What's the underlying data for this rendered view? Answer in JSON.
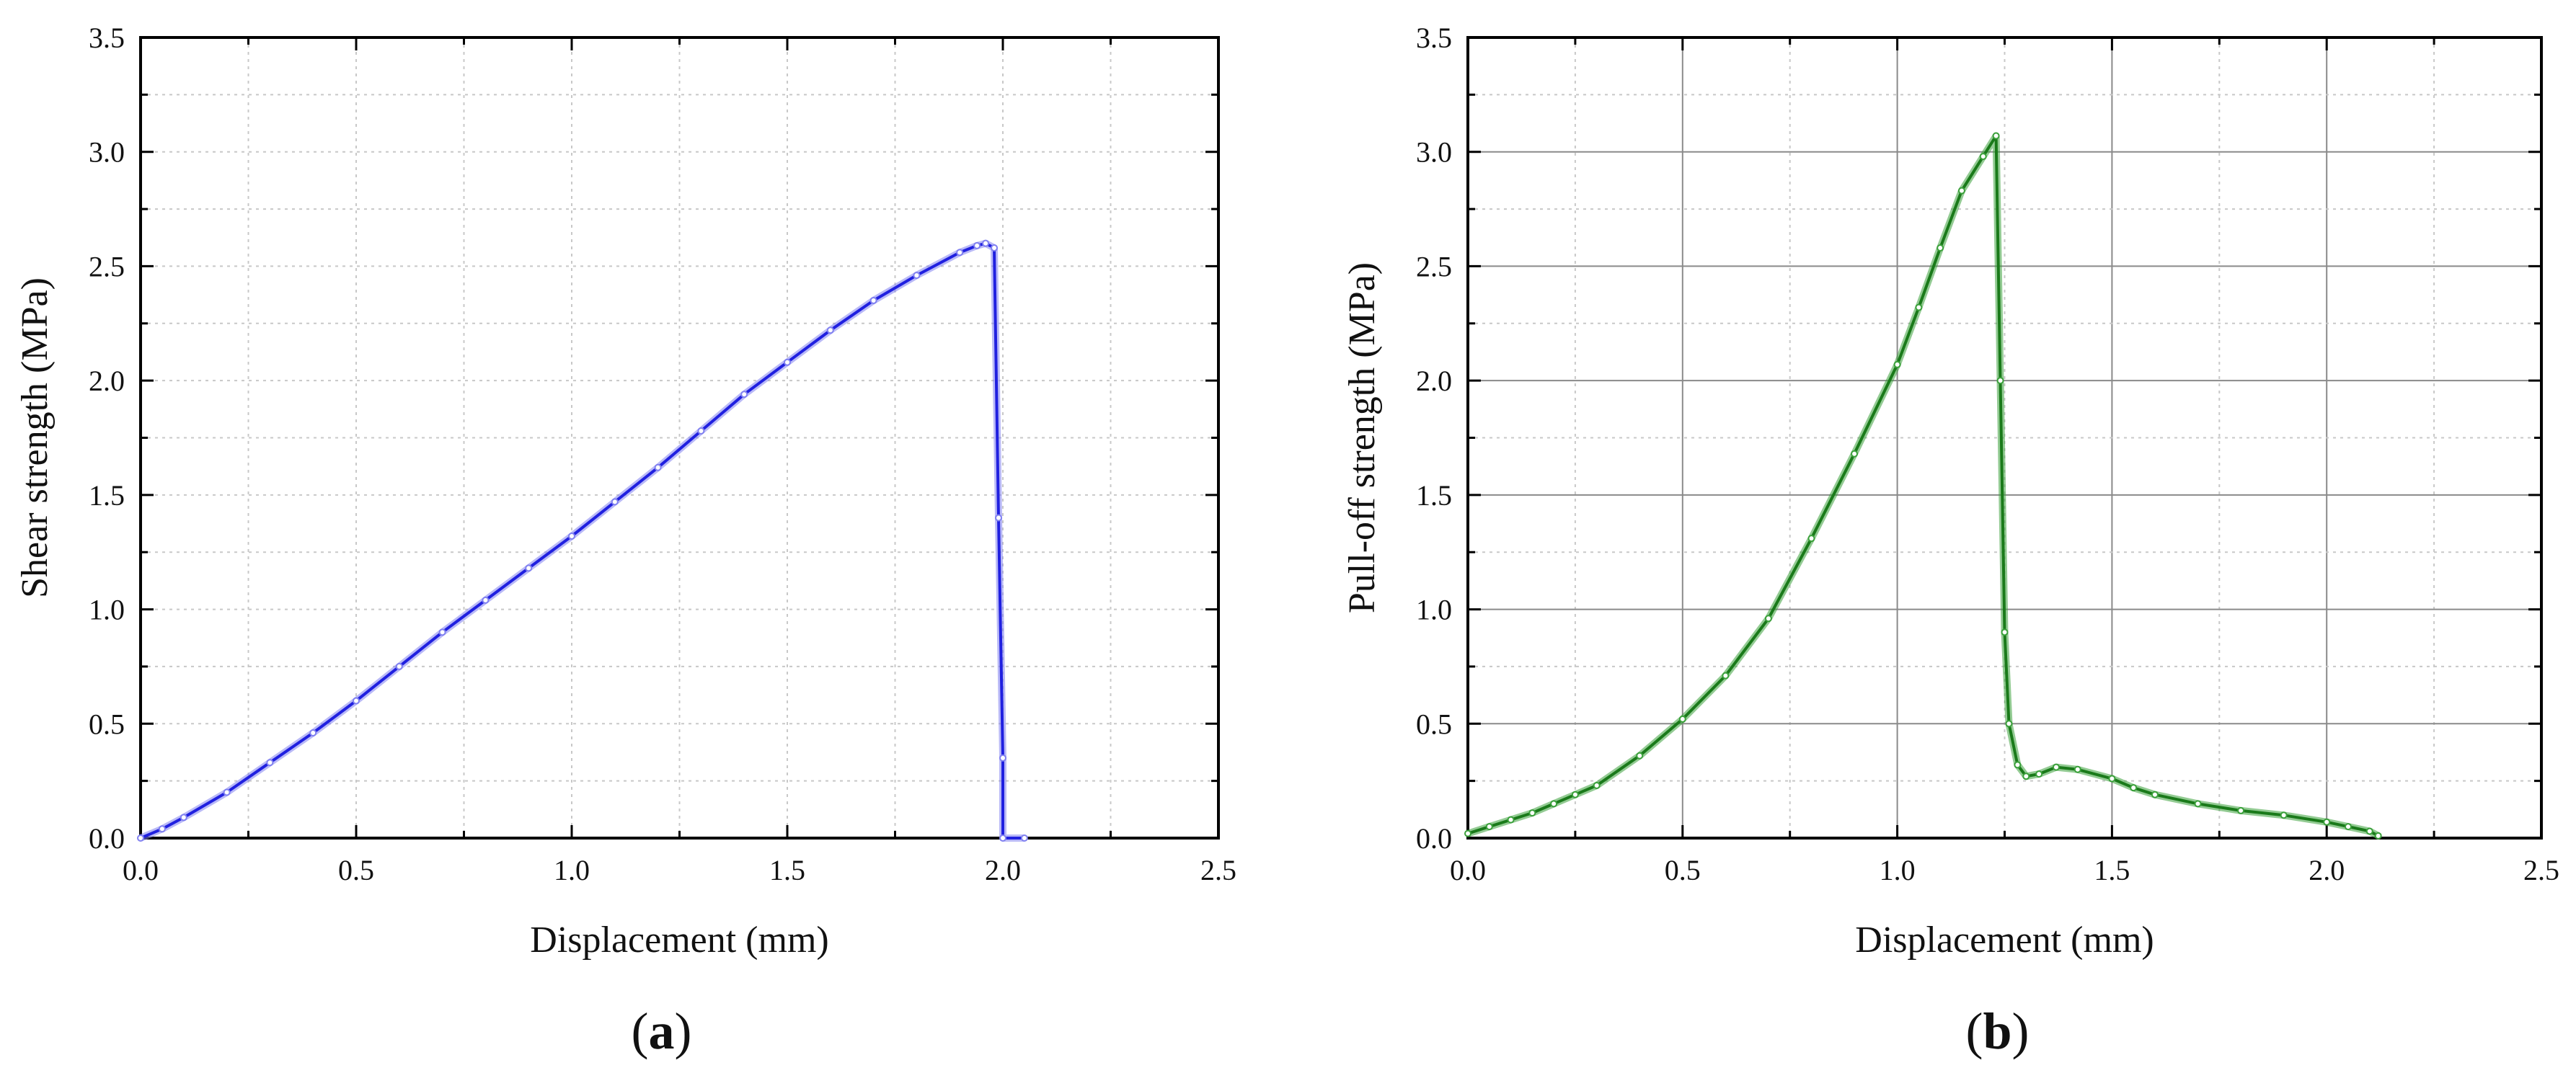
{
  "chart_data": [
    {
      "type": "line",
      "panel_label": {
        "open": "(",
        "letter": "a",
        "close": ")"
      },
      "xlabel": "Displacement (mm)",
      "ylabel": "Shear strength (MPa)",
      "xlim": [
        0.0,
        2.5
      ],
      "ylim": [
        0.0,
        3.5
      ],
      "xticks": [
        "0.0",
        "0.5",
        "1.0",
        "1.5",
        "2.0",
        "2.5"
      ],
      "yticks": [
        "0.0",
        "0.5",
        "1.0",
        "1.5",
        "2.0",
        "2.5",
        "3.0",
        "3.5"
      ],
      "grid": "dotted minor and major",
      "color": "#2020e0",
      "marker_color": "#8080f0",
      "series": [
        {
          "x": [
            0.0,
            0.05,
            0.1,
            0.2,
            0.3,
            0.4,
            0.5,
            0.6,
            0.7,
            0.8,
            0.9,
            1.0,
            1.1,
            1.2,
            1.3,
            1.4,
            1.5,
            1.6,
            1.7,
            1.8,
            1.9,
            1.94,
            1.96,
            1.98,
            1.99,
            2.0,
            2.0,
            2.05
          ],
          "y": [
            0.0,
            0.04,
            0.09,
            0.2,
            0.33,
            0.46,
            0.6,
            0.75,
            0.9,
            1.04,
            1.18,
            1.32,
            1.47,
            1.62,
            1.78,
            1.94,
            2.08,
            2.22,
            2.35,
            2.46,
            2.56,
            2.59,
            2.6,
            2.58,
            1.4,
            0.35,
            0.0,
            0.0
          ]
        }
      ]
    },
    {
      "type": "line",
      "panel_label": {
        "open": "(",
        "letter": "b",
        "close": ")"
      },
      "xlabel": "Displacement (mm)",
      "ylabel": "Pull-off strength (MPa)",
      "xlim": [
        0.0,
        2.5
      ],
      "ylim": [
        0.0,
        3.5
      ],
      "xticks": [
        "0.0",
        "0.5",
        "1.0",
        "1.5",
        "2.0",
        "2.5"
      ],
      "yticks": [
        "0.0",
        "0.5",
        "1.0",
        "1.5",
        "2.0",
        "2.5",
        "3.0",
        "3.5"
      ],
      "grid": "solid major, dotted minor",
      "color": "#1a7a1a",
      "marker_color": "#3aa03a",
      "series": [
        {
          "x": [
            0.0,
            0.05,
            0.1,
            0.15,
            0.2,
            0.25,
            0.3,
            0.4,
            0.5,
            0.6,
            0.7,
            0.8,
            0.9,
            1.0,
            1.05,
            1.1,
            1.15,
            1.2,
            1.23,
            1.24,
            1.25,
            1.26,
            1.28,
            1.3,
            1.33,
            1.37,
            1.42,
            1.5,
            1.55,
            1.6,
            1.7,
            1.8,
            1.9,
            2.0,
            2.05,
            2.1,
            2.12
          ],
          "y": [
            0.02,
            0.05,
            0.08,
            0.11,
            0.15,
            0.19,
            0.23,
            0.36,
            0.52,
            0.71,
            0.96,
            1.31,
            1.68,
            2.07,
            2.32,
            2.58,
            2.83,
            2.98,
            3.07,
            2.0,
            0.9,
            0.5,
            0.32,
            0.27,
            0.28,
            0.31,
            0.3,
            0.26,
            0.22,
            0.19,
            0.15,
            0.12,
            0.1,
            0.07,
            0.05,
            0.03,
            0.01
          ]
        }
      ]
    }
  ]
}
